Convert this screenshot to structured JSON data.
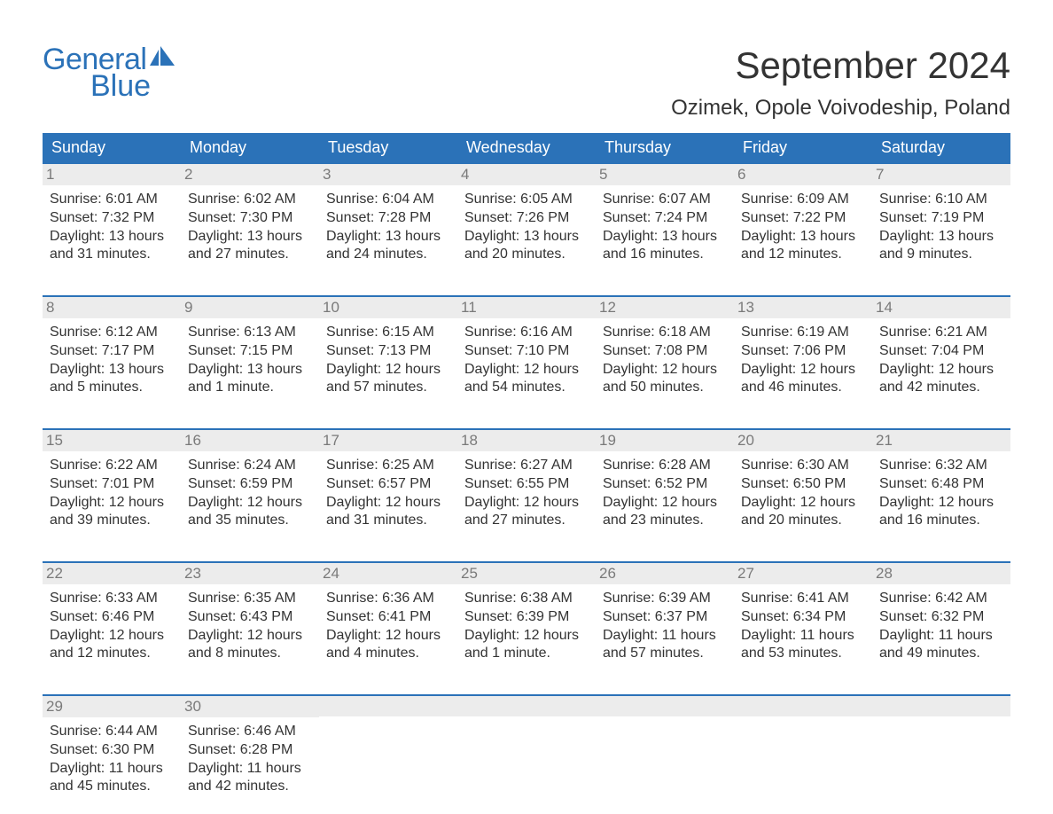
{
  "logo": {
    "line1": "General",
    "line2": "Blue"
  },
  "title": "September 2024",
  "location": "Ozimek, Opole Voivodeship, Poland",
  "colors": {
    "brand_blue": "#2b72b8",
    "text": "#333333",
    "daynum": "#7a7a7a",
    "daybar_bg": "#ececec",
    "background": "#ffffff"
  },
  "typography": {
    "title_fontsize": 42,
    "location_fontsize": 24,
    "weekday_fontsize": 18,
    "body_fontsize": 16,
    "logo_fontsize": 34
  },
  "weekdays": [
    "Sunday",
    "Monday",
    "Tuesday",
    "Wednesday",
    "Thursday",
    "Friday",
    "Saturday"
  ],
  "weeks": [
    [
      {
        "n": "1",
        "sr": "Sunrise: 6:01 AM",
        "ss": "Sunset: 7:32 PM",
        "d1": "Daylight: 13 hours",
        "d2": "and 31 minutes."
      },
      {
        "n": "2",
        "sr": "Sunrise: 6:02 AM",
        "ss": "Sunset: 7:30 PM",
        "d1": "Daylight: 13 hours",
        "d2": "and 27 minutes."
      },
      {
        "n": "3",
        "sr": "Sunrise: 6:04 AM",
        "ss": "Sunset: 7:28 PM",
        "d1": "Daylight: 13 hours",
        "d2": "and 24 minutes."
      },
      {
        "n": "4",
        "sr": "Sunrise: 6:05 AM",
        "ss": "Sunset: 7:26 PM",
        "d1": "Daylight: 13 hours",
        "d2": "and 20 minutes."
      },
      {
        "n": "5",
        "sr": "Sunrise: 6:07 AM",
        "ss": "Sunset: 7:24 PM",
        "d1": "Daylight: 13 hours",
        "d2": "and 16 minutes."
      },
      {
        "n": "6",
        "sr": "Sunrise: 6:09 AM",
        "ss": "Sunset: 7:22 PM",
        "d1": "Daylight: 13 hours",
        "d2": "and 12 minutes."
      },
      {
        "n": "7",
        "sr": "Sunrise: 6:10 AM",
        "ss": "Sunset: 7:19 PM",
        "d1": "Daylight: 13 hours",
        "d2": "and 9 minutes."
      }
    ],
    [
      {
        "n": "8",
        "sr": "Sunrise: 6:12 AM",
        "ss": "Sunset: 7:17 PM",
        "d1": "Daylight: 13 hours",
        "d2": "and 5 minutes."
      },
      {
        "n": "9",
        "sr": "Sunrise: 6:13 AM",
        "ss": "Sunset: 7:15 PM",
        "d1": "Daylight: 13 hours",
        "d2": "and 1 minute."
      },
      {
        "n": "10",
        "sr": "Sunrise: 6:15 AM",
        "ss": "Sunset: 7:13 PM",
        "d1": "Daylight: 12 hours",
        "d2": "and 57 minutes."
      },
      {
        "n": "11",
        "sr": "Sunrise: 6:16 AM",
        "ss": "Sunset: 7:10 PM",
        "d1": "Daylight: 12 hours",
        "d2": "and 54 minutes."
      },
      {
        "n": "12",
        "sr": "Sunrise: 6:18 AM",
        "ss": "Sunset: 7:08 PM",
        "d1": "Daylight: 12 hours",
        "d2": "and 50 minutes."
      },
      {
        "n": "13",
        "sr": "Sunrise: 6:19 AM",
        "ss": "Sunset: 7:06 PM",
        "d1": "Daylight: 12 hours",
        "d2": "and 46 minutes."
      },
      {
        "n": "14",
        "sr": "Sunrise: 6:21 AM",
        "ss": "Sunset: 7:04 PM",
        "d1": "Daylight: 12 hours",
        "d2": "and 42 minutes."
      }
    ],
    [
      {
        "n": "15",
        "sr": "Sunrise: 6:22 AM",
        "ss": "Sunset: 7:01 PM",
        "d1": "Daylight: 12 hours",
        "d2": "and 39 minutes."
      },
      {
        "n": "16",
        "sr": "Sunrise: 6:24 AM",
        "ss": "Sunset: 6:59 PM",
        "d1": "Daylight: 12 hours",
        "d2": "and 35 minutes."
      },
      {
        "n": "17",
        "sr": "Sunrise: 6:25 AM",
        "ss": "Sunset: 6:57 PM",
        "d1": "Daylight: 12 hours",
        "d2": "and 31 minutes."
      },
      {
        "n": "18",
        "sr": "Sunrise: 6:27 AM",
        "ss": "Sunset: 6:55 PM",
        "d1": "Daylight: 12 hours",
        "d2": "and 27 minutes."
      },
      {
        "n": "19",
        "sr": "Sunrise: 6:28 AM",
        "ss": "Sunset: 6:52 PM",
        "d1": "Daylight: 12 hours",
        "d2": "and 23 minutes."
      },
      {
        "n": "20",
        "sr": "Sunrise: 6:30 AM",
        "ss": "Sunset: 6:50 PM",
        "d1": "Daylight: 12 hours",
        "d2": "and 20 minutes."
      },
      {
        "n": "21",
        "sr": "Sunrise: 6:32 AM",
        "ss": "Sunset: 6:48 PM",
        "d1": "Daylight: 12 hours",
        "d2": "and 16 minutes."
      }
    ],
    [
      {
        "n": "22",
        "sr": "Sunrise: 6:33 AM",
        "ss": "Sunset: 6:46 PM",
        "d1": "Daylight: 12 hours",
        "d2": "and 12 minutes."
      },
      {
        "n": "23",
        "sr": "Sunrise: 6:35 AM",
        "ss": "Sunset: 6:43 PM",
        "d1": "Daylight: 12 hours",
        "d2": "and 8 minutes."
      },
      {
        "n": "24",
        "sr": "Sunrise: 6:36 AM",
        "ss": "Sunset: 6:41 PM",
        "d1": "Daylight: 12 hours",
        "d2": "and 4 minutes."
      },
      {
        "n": "25",
        "sr": "Sunrise: 6:38 AM",
        "ss": "Sunset: 6:39 PM",
        "d1": "Daylight: 12 hours",
        "d2": "and 1 minute."
      },
      {
        "n": "26",
        "sr": "Sunrise: 6:39 AM",
        "ss": "Sunset: 6:37 PM",
        "d1": "Daylight: 11 hours",
        "d2": "and 57 minutes."
      },
      {
        "n": "27",
        "sr": "Sunrise: 6:41 AM",
        "ss": "Sunset: 6:34 PM",
        "d1": "Daylight: 11 hours",
        "d2": "and 53 minutes."
      },
      {
        "n": "28",
        "sr": "Sunrise: 6:42 AM",
        "ss": "Sunset: 6:32 PM",
        "d1": "Daylight: 11 hours",
        "d2": "and 49 minutes."
      }
    ],
    [
      {
        "n": "29",
        "sr": "Sunrise: 6:44 AM",
        "ss": "Sunset: 6:30 PM",
        "d1": "Daylight: 11 hours",
        "d2": "and 45 minutes."
      },
      {
        "n": "30",
        "sr": "Sunrise: 6:46 AM",
        "ss": "Sunset: 6:28 PM",
        "d1": "Daylight: 11 hours",
        "d2": "and 42 minutes."
      },
      null,
      null,
      null,
      null,
      null
    ]
  ]
}
